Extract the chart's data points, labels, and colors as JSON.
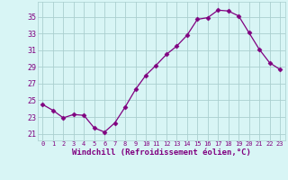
{
  "x": [
    0,
    1,
    2,
    3,
    4,
    5,
    6,
    7,
    8,
    9,
    10,
    11,
    12,
    13,
    14,
    15,
    16,
    17,
    18,
    19,
    20,
    21,
    22,
    23
  ],
  "y": [
    24.5,
    23.8,
    22.9,
    23.3,
    23.2,
    21.7,
    21.2,
    22.3,
    24.2,
    26.3,
    28.0,
    29.2,
    30.5,
    31.5,
    32.8,
    34.7,
    34.9,
    35.8,
    35.7,
    35.1,
    33.1,
    31.1,
    29.5,
    28.7
  ],
  "line_color": "#800080",
  "marker": "D",
  "marker_size": 2.5,
  "bg_color": "#d8f5f5",
  "grid_color": "#aacfcf",
  "xlabel": "Windchill (Refroidissement éolien,°C)",
  "ylabel_ticks": [
    21,
    23,
    25,
    27,
    29,
    31,
    33,
    35
  ],
  "ylim": [
    20.2,
    36.8
  ],
  "xlim": [
    -0.5,
    23.5
  ],
  "tick_color": "#800080",
  "label_color": "#800080",
  "xtick_fontsize": 5.0,
  "ytick_fontsize": 6.0,
  "xlabel_fontsize": 6.5
}
